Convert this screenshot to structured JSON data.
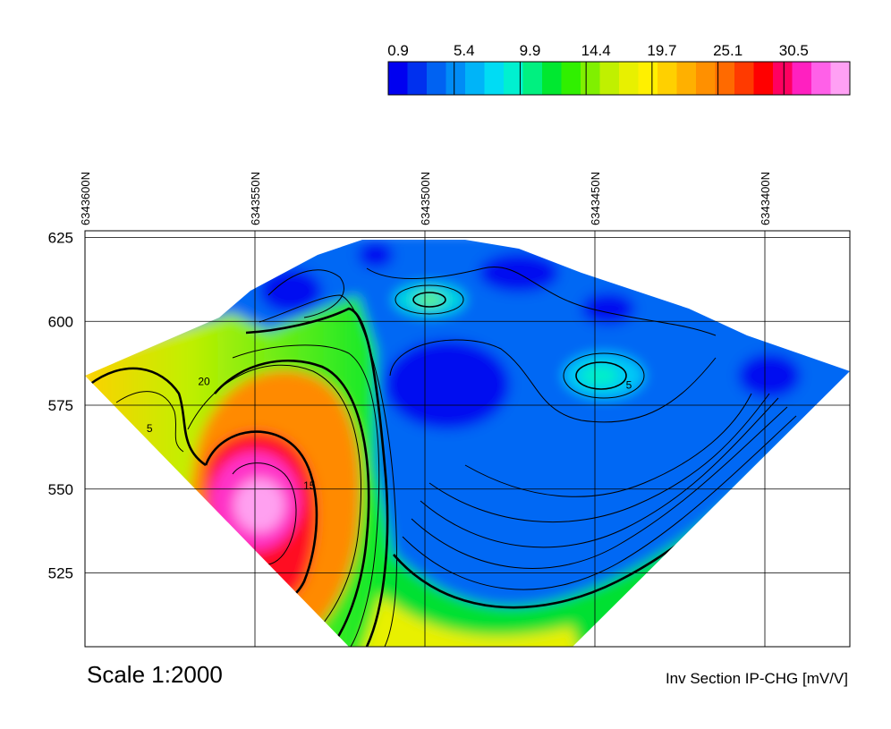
{
  "chart_data": {
    "type": "heatmap",
    "title": "",
    "xlabel": "",
    "ylabel": "",
    "x_axis": {
      "position": "top",
      "ticks": [
        "6343600N",
        "6343550N",
        "6343500N",
        "6343450N",
        "6343400N"
      ],
      "values": [
        6343600,
        6343550,
        6343500,
        6343450,
        6343400
      ],
      "range": [
        6343600,
        6343375
      ],
      "rotated": true
    },
    "y_axis": {
      "ticks": [
        "625",
        "600",
        "575",
        "550",
        "525"
      ],
      "values": [
        625,
        600,
        575,
        550,
        525
      ],
      "range": [
        503,
        627
      ]
    },
    "grid": true,
    "colorbar": {
      "placement": "top-right",
      "labels": [
        "0.9",
        "5.4",
        "9.9",
        "14.4",
        "19.7",
        "25.1",
        "30.5"
      ],
      "label_values": [
        0.9,
        5.4,
        9.9,
        14.4,
        19.7,
        25.1,
        30.5
      ],
      "colors": [
        "#0000f0",
        "#0030ee",
        "#0062f2",
        "#008cf6",
        "#00b4f8",
        "#00dcf4",
        "#00f0d0",
        "#00f080",
        "#00e830",
        "#30f000",
        "#80f000",
        "#c0f000",
        "#e8f000",
        "#fff000",
        "#ffd000",
        "#ffb000",
        "#ff9000",
        "#ff6a00",
        "#ff3a00",
        "#ff0000",
        "#ff0060",
        "#ff20c0",
        "#ff60e8",
        "#ffa0f4"
      ]
    },
    "contour_labels": [
      {
        "text": "20",
        "x": 6343565,
        "y": 581
      },
      {
        "text": "5",
        "x": 6343581,
        "y": 567
      },
      {
        "text": "15",
        "x": 6343534,
        "y": 550
      },
      {
        "text": "5",
        "x": 6343440,
        "y": 580
      }
    ],
    "scale_text": "Scale 1:2000",
    "section_title": "Inv Section IP-CHG [mV/V]"
  }
}
